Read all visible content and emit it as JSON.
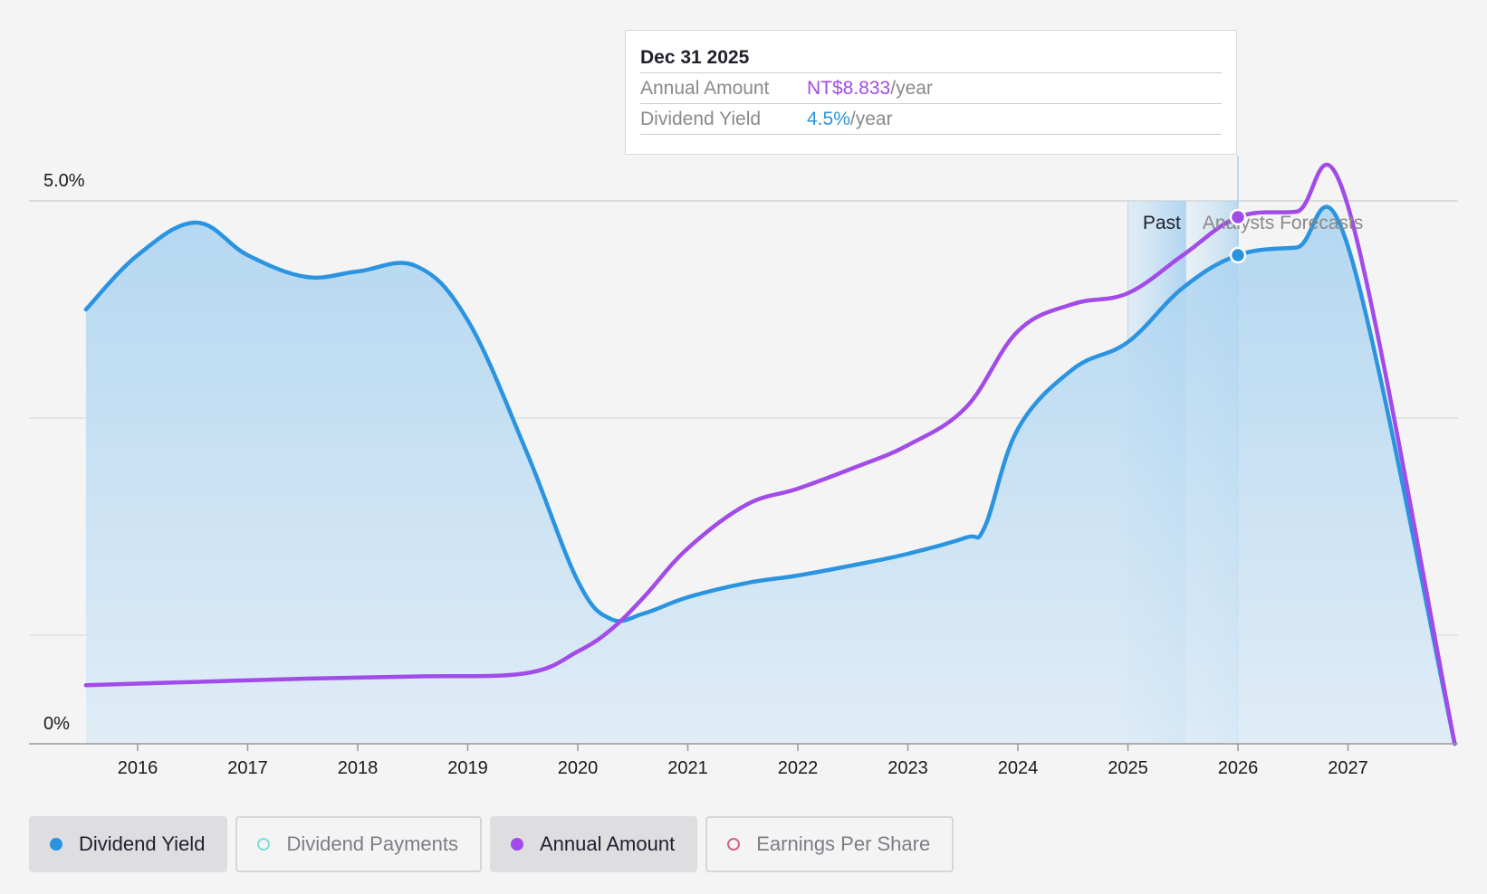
{
  "chart_data": {
    "type": "line",
    "x_ticks": [
      "2016",
      "2017",
      "2018",
      "2019",
      "2020",
      "2021",
      "2022",
      "2023",
      "2024",
      "2025",
      "2026",
      "2027"
    ],
    "y_ticks": [
      "0%",
      "5.0%"
    ],
    "ylim": [
      0,
      5
    ],
    "region_labels": {
      "past": "Past",
      "forecast": "Analysts Forecasts"
    },
    "series": [
      {
        "name": "Dividend Yield",
        "color": "#2b94e0",
        "filled": true,
        "points": [
          [
            2015.53,
            4.0
          ],
          [
            2016.0,
            4.5
          ],
          [
            2016.53,
            4.8
          ],
          [
            2017.0,
            4.5
          ],
          [
            2017.53,
            4.3
          ],
          [
            2018.0,
            4.35
          ],
          [
            2018.53,
            4.4
          ],
          [
            2019.0,
            3.9
          ],
          [
            2019.53,
            2.7
          ],
          [
            2020.0,
            1.5
          ],
          [
            2020.3,
            1.15
          ],
          [
            2020.6,
            1.2
          ],
          [
            2021.0,
            1.35
          ],
          [
            2021.53,
            1.48
          ],
          [
            2022.0,
            1.55
          ],
          [
            2022.53,
            1.65
          ],
          [
            2023.0,
            1.75
          ],
          [
            2023.53,
            1.9
          ],
          [
            2023.7,
            2.0
          ],
          [
            2024.0,
            2.9
          ],
          [
            2024.5,
            3.45
          ],
          [
            2025.0,
            3.7
          ],
          [
            2025.5,
            4.2
          ],
          [
            2026.0,
            4.5
          ],
          [
            2026.53,
            4.57
          ],
          [
            2027.0,
            4.58
          ],
          [
            2027.97,
            0.0
          ]
        ]
      },
      {
        "name": "Annual Amount",
        "color": "#a24be8",
        "filled": false,
        "points": [
          [
            2015.53,
            0.54
          ],
          [
            2016.53,
            0.57
          ],
          [
            2017.53,
            0.6
          ],
          [
            2018.53,
            0.62
          ],
          [
            2019.53,
            0.65
          ],
          [
            2020.0,
            0.85
          ],
          [
            2020.3,
            1.05
          ],
          [
            2020.6,
            1.35
          ],
          [
            2021.0,
            1.8
          ],
          [
            2021.53,
            2.2
          ],
          [
            2022.0,
            2.35
          ],
          [
            2022.53,
            2.55
          ],
          [
            2023.0,
            2.75
          ],
          [
            2023.53,
            3.1
          ],
          [
            2024.0,
            3.8
          ],
          [
            2024.5,
            4.05
          ],
          [
            2025.0,
            4.15
          ],
          [
            2025.5,
            4.5
          ],
          [
            2026.0,
            4.85
          ],
          [
            2026.53,
            4.9
          ],
          [
            2027.0,
            4.95
          ],
          [
            2027.97,
            0.0
          ]
        ]
      }
    ],
    "tooltip": {
      "date": "Dec 31 2025",
      "x": 2026.0,
      "rows": [
        {
          "label": "Annual Amount",
          "value": "NT$8.833",
          "unit": "/year",
          "color": "#a24be8"
        },
        {
          "label": "Dividend Yield",
          "value": "4.5%",
          "unit": "/year",
          "color": "#2b94e0"
        }
      ]
    }
  },
  "legend": [
    {
      "label": "Dividend Yield",
      "color": "#2b94e0",
      "active": true
    },
    {
      "label": "Dividend Payments",
      "color": "#7ee0d8",
      "active": false
    },
    {
      "label": "Annual Amount",
      "color": "#a24be8",
      "active": true
    },
    {
      "label": "Earnings Per Share",
      "color": "#d0628f",
      "active": false
    }
  ]
}
